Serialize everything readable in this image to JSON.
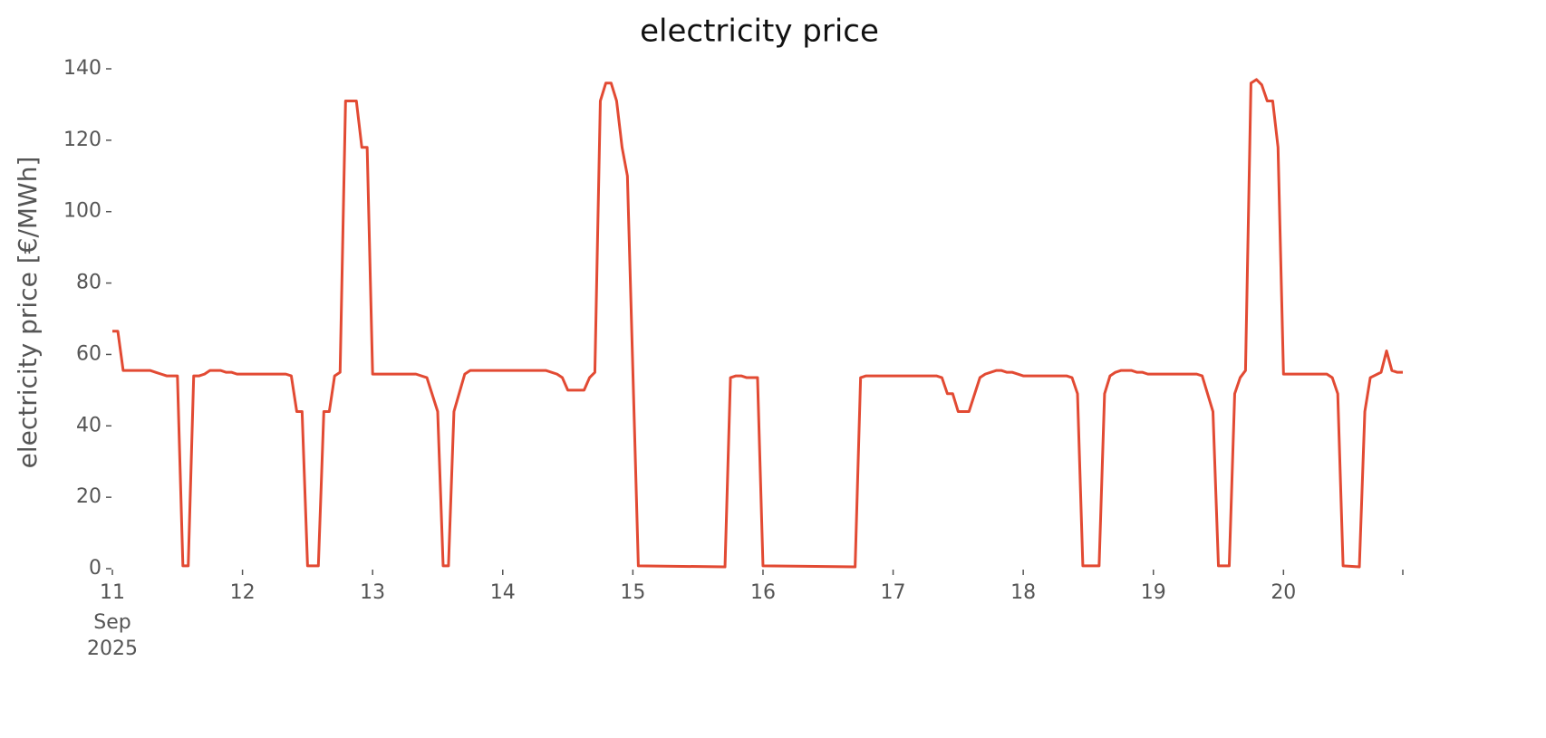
{
  "chart_data": {
    "type": "line",
    "title": "electricity price",
    "ylabel": "electricity price [€/MWh]",
    "x_month": "Sep",
    "x_year": "2025",
    "x": [
      11,
      11.042,
      11.083,
      11.292,
      11.333,
      11.375,
      11.417,
      11.5,
      11.542,
      11.583,
      11.625,
      11.667,
      11.708,
      11.75,
      11.833,
      11.875,
      11.917,
      11.958,
      12.333,
      12.375,
      12.417,
      12.458,
      12.5,
      12.583,
      12.625,
      12.667,
      12.708,
      12.75,
      12.792,
      12.875,
      12.917,
      12.958,
      13,
      13.333,
      13.417,
      13.5,
      13.542,
      13.583,
      13.625,
      13.708,
      13.75,
      14.333,
      14.417,
      14.458,
      14.5,
      14.625,
      14.667,
      14.708,
      14.75,
      14.792,
      14.833,
      14.875,
      14.917,
      14.958,
      15.042,
      15.708,
      15.75,
      15.792,
      15.833,
      15.875,
      15.958,
      16,
      16.708,
      16.75,
      16.792,
      17.333,
      17.375,
      17.417,
      17.458,
      17.5,
      17.583,
      17.667,
      17.708,
      17.792,
      17.833,
      17.875,
      17.917,
      18,
      18.333,
      18.375,
      18.417,
      18.458,
      18.583,
      18.625,
      18.667,
      18.708,
      18.75,
      18.833,
      18.875,
      18.917,
      18.958,
      19.333,
      19.375,
      19.458,
      19.5,
      19.583,
      19.625,
      19.667,
      19.708,
      19.75,
      19.792,
      19.833,
      19.875,
      19.917,
      19.958,
      20,
      20.333,
      20.375,
      20.417,
      20.458,
      20.583,
      20.625,
      20.667,
      20.75,
      20.792,
      20.833,
      20.875,
      20.917
    ],
    "values": [
      66.5,
      66.5,
      55.5,
      55.5,
      55,
      54.5,
      54,
      54,
      0.8,
      0.8,
      54,
      54,
      54.5,
      55.5,
      55.5,
      55,
      55,
      54.5,
      54.5,
      54,
      44,
      44,
      0.8,
      0.8,
      44,
      44,
      54,
      55,
      131,
      131,
      118,
      118,
      54.5,
      54.5,
      53.5,
      44,
      0.8,
      0.8,
      44,
      54.5,
      55.5,
      55.5,
      54.5,
      53.5,
      50,
      50,
      53.5,
      55,
      131,
      136,
      136,
      131,
      118,
      110,
      0.8,
      0.5,
      53.5,
      54,
      54,
      53.5,
      53.5,
      0.8,
      0.5,
      53.5,
      54,
      54,
      53.5,
      49,
      49,
      44,
      44,
      53.5,
      54.5,
      55.5,
      55.5,
      55,
      55,
      54,
      54,
      53.5,
      49,
      0.8,
      0.8,
      49,
      54,
      55,
      55.5,
      55.5,
      55,
      55,
      54.5,
      54.5,
      54,
      44,
      0.8,
      0.8,
      49,
      53.5,
      55.5,
      136,
      137,
      135.5,
      131,
      131,
      118,
      54.5,
      54.5,
      53.5,
      49,
      0.8,
      0.5,
      44,
      53.5,
      55,
      61,
      55.5,
      55,
      55
    ],
    "color": "#e24a33",
    "xlim": [
      11,
      20.917
    ],
    "ylim": [
      0,
      140
    ],
    "xticks": [
      11,
      12,
      13,
      14,
      15,
      16,
      17,
      18,
      19,
      20
    ],
    "yticks": [
      0,
      20,
      40,
      60,
      80,
      100,
      120,
      140
    ]
  }
}
